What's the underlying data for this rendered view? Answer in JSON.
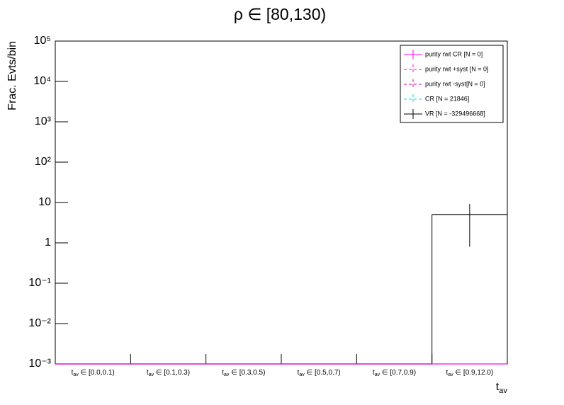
{
  "chart_data": {
    "type": "histogram",
    "title": "ρ ∈ [80,130)",
    "y_label": "Frac. Evts/bin",
    "x_label": "t_av",
    "categories": [
      "t_av ∈ [0.0,0.1)",
      "t_av ∈ [0.1,0.3)",
      "t_av ∈ [0.3,0.5)",
      "t_av ∈ [0.5,0.7)",
      "t_av ∈ [0.7,0.9)",
      "t_av ∈ [0.9,12.0)"
    ],
    "y_scale": "log",
    "ylim": [
      0.001,
      100000
    ],
    "yticks": [
      {
        "value": 0.001,
        "label": "10⁻³"
      },
      {
        "value": 0.01,
        "label": "10⁻²"
      },
      {
        "value": 0.1,
        "label": "10⁻¹"
      },
      1,
      10,
      {
        "value": 100,
        "label": "10²"
      },
      {
        "value": 1000,
        "label": "10³"
      },
      {
        "value": 10000,
        "label": "10⁴"
      },
      {
        "value": 100000,
        "label": "10⁵"
      }
    ],
    "legend_position": "upper right",
    "series": [
      {
        "name": "purity rwt CR [N = 0]",
        "color": "#ff00ff",
        "line_style": "solid",
        "values": [
          0,
          0,
          0,
          0,
          0,
          0
        ]
      },
      {
        "name": "purity rwt +syst [N = 0]",
        "color": "#ff00ff",
        "line_style": "dashed",
        "values": [
          null,
          null,
          null,
          null,
          null,
          null
        ]
      },
      {
        "name": "purity rwt -syst[N = 0]",
        "color": "#e000b0",
        "line_style": "dashed",
        "values": [
          null,
          null,
          null,
          null,
          null,
          null
        ]
      },
      {
        "name": "CR [N = 21846]",
        "color": "#00e0e0",
        "line_style": "dashed",
        "values": [
          null,
          null,
          null,
          null,
          null,
          null
        ]
      },
      {
        "name": "VR [N = -329496668]",
        "color": "#000000",
        "line_style": "solid",
        "values": [
          0,
          0,
          0,
          0,
          0,
          5
        ],
        "errors": [
          0,
          0,
          0,
          0,
          0,
          4.2
        ]
      }
    ]
  }
}
